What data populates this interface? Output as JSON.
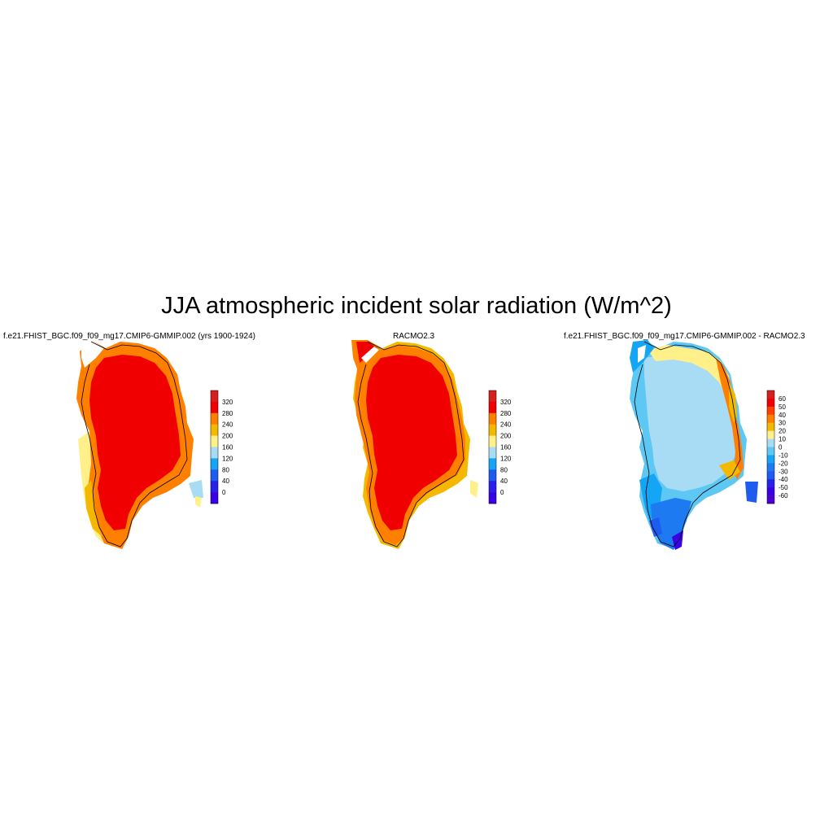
{
  "title": "JJA atmospheric incident solar radiation (W/m^2)",
  "panels": [
    {
      "title": "f.e21.FHIST_BGC.f09_f09_mg17.CMIP6-GMMIP.002 (yrs 1900-1924)",
      "colorbar": {
        "labels": [
          "320",
          "280",
          "240",
          "200",
          "160",
          "120",
          "80",
          "40",
          "0"
        ],
        "colors": [
          "#d62020",
          "#f00000",
          "#ff8000",
          "#f5b800",
          "#fff08a",
          "#a8dcf5",
          "#14a5f5",
          "#1e5cf0",
          "#2a20ec",
          "#3a00e6"
        ]
      }
    },
    {
      "title": "RACMO2.3",
      "colorbar": {
        "labels": [
          "320",
          "280",
          "240",
          "200",
          "160",
          "120",
          "80",
          "40",
          "0"
        ],
        "colors": [
          "#d62020",
          "#f00000",
          "#ff8000",
          "#f5b800",
          "#fff08a",
          "#a8dcf5",
          "#14a5f5",
          "#1e5cf0",
          "#2a20ec",
          "#3a00e6"
        ]
      }
    },
    {
      "title": "f.e21.FHIST_BGC.f09_f09_mg17.CMIP6-GMMIP.002 - RACMO2.3",
      "colorbar": {
        "labels": [
          "60",
          "50",
          "40",
          "30",
          "20",
          "10",
          "0",
          "-10",
          "-20",
          "-30",
          "-40",
          "-50",
          "-60"
        ],
        "colors": [
          "#d62020",
          "#f00000",
          "#ff4000",
          "#ff8000",
          "#f5b800",
          "#fff08a",
          "#a8dcf5",
          "#5ec8f5",
          "#14a5f5",
          "#1e7af0",
          "#1e5cf0",
          "#2a20ec",
          "#3a00e6",
          "#4a00d0"
        ]
      }
    }
  ]
}
